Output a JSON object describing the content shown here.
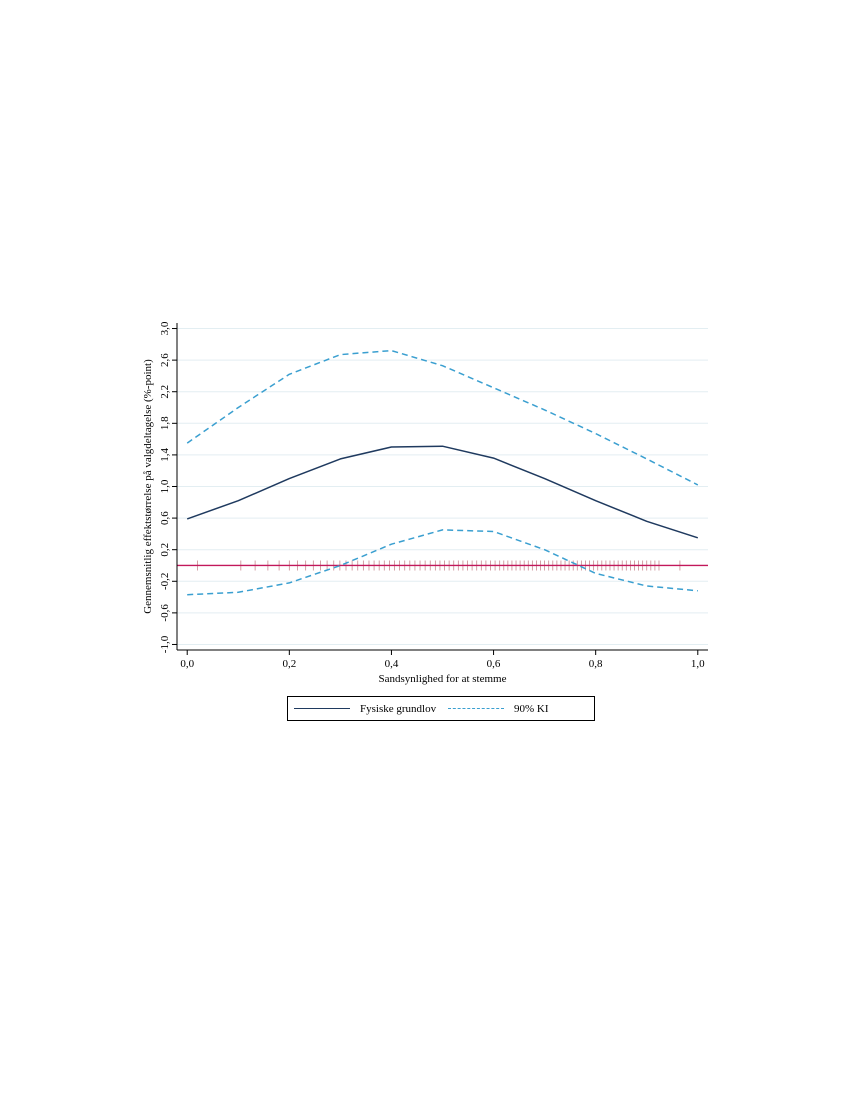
{
  "chart_data": {
    "type": "line",
    "xlabel": "Sandsynlighed for at stemme",
    "ylabel": "Gennemsnitlig effektstørrelse på valgdeltagelse (%-point)",
    "xlim": [
      -0.02,
      1.02
    ],
    "ylim": [
      -1.07,
      3.07
    ],
    "x_ticks": [
      0.0,
      0.2,
      0.4,
      0.6,
      0.8,
      1.0
    ],
    "x_tick_labels": [
      "0,0",
      "0,2",
      "0,4",
      "0,6",
      "0,8",
      "1,0"
    ],
    "y_ticks": [
      -1.0,
      -0.6,
      -0.2,
      0.2,
      0.6,
      1.0,
      1.4,
      1.8,
      2.2,
      2.6,
      3.0
    ],
    "y_tick_labels": [
      "-1,0",
      "-0,6",
      "-0,2",
      "0,2",
      "0,6",
      "1,0",
      "1,4",
      "1,8",
      "2,2",
      "2,6",
      "3,0"
    ],
    "grid": true,
    "reference_line": {
      "y": 0,
      "color": "#c2185b"
    },
    "x": [
      0.0,
      0.1,
      0.2,
      0.3,
      0.4,
      0.5,
      0.6,
      0.7,
      0.8,
      0.9,
      1.0
    ],
    "series": [
      {
        "name": "Fysiske grundlov",
        "style": "solid",
        "color": "#1f3a5f",
        "values": [
          0.59,
          0.82,
          1.1,
          1.35,
          1.5,
          1.51,
          1.36,
          1.1,
          0.82,
          0.56,
          0.35
        ]
      },
      {
        "name": "90% KI",
        "style": "dashed",
        "color": "#3a9fd0",
        "values": [
          1.55,
          2.0,
          2.42,
          2.67,
          2.72,
          2.53,
          2.25,
          1.97,
          1.67,
          1.35,
          1.02
        ]
      },
      {
        "style": "dashed",
        "color": "#3a9fd0",
        "values": [
          -0.37,
          -0.34,
          -0.22,
          0.0,
          0.27,
          0.45,
          0.43,
          0.2,
          -0.1,
          -0.26,
          -0.32
        ]
      }
    ],
    "rug": {
      "color": "#c8878f",
      "x": [
        0.02,
        0.105,
        0.133,
        0.158,
        0.18,
        0.2,
        0.216,
        0.232,
        0.247,
        0.261,
        0.274,
        0.287,
        0.299,
        0.311,
        0.323,
        0.334,
        0.345,
        0.356,
        0.366,
        0.376,
        0.386,
        0.396,
        0.406,
        0.416,
        0.426,
        0.436,
        0.446,
        0.456,
        0.466,
        0.476,
        0.486,
        0.495,
        0.504,
        0.513,
        0.522,
        0.531,
        0.54,
        0.549,
        0.558,
        0.567,
        0.576,
        0.585,
        0.594,
        0.603,
        0.612,
        0.62,
        0.628,
        0.636,
        0.644,
        0.652,
        0.66,
        0.668,
        0.676,
        0.684,
        0.692,
        0.7,
        0.708,
        0.716,
        0.724,
        0.732,
        0.74,
        0.748,
        0.756,
        0.764,
        0.772,
        0.78,
        0.788,
        0.796,
        0.804,
        0.812,
        0.82,
        0.828,
        0.836,
        0.844,
        0.852,
        0.86,
        0.868,
        0.876,
        0.884,
        0.892,
        0.9,
        0.908,
        0.916,
        0.924,
        0.965
      ]
    },
    "legend": {
      "position": "bottom",
      "entries": [
        {
          "label": "Fysiske grundlov",
          "style": "solid",
          "color": "#1f3a5f"
        },
        {
          "label": "90% KI",
          "style": "dashed",
          "color": "#3a9fd0"
        }
      ]
    }
  }
}
